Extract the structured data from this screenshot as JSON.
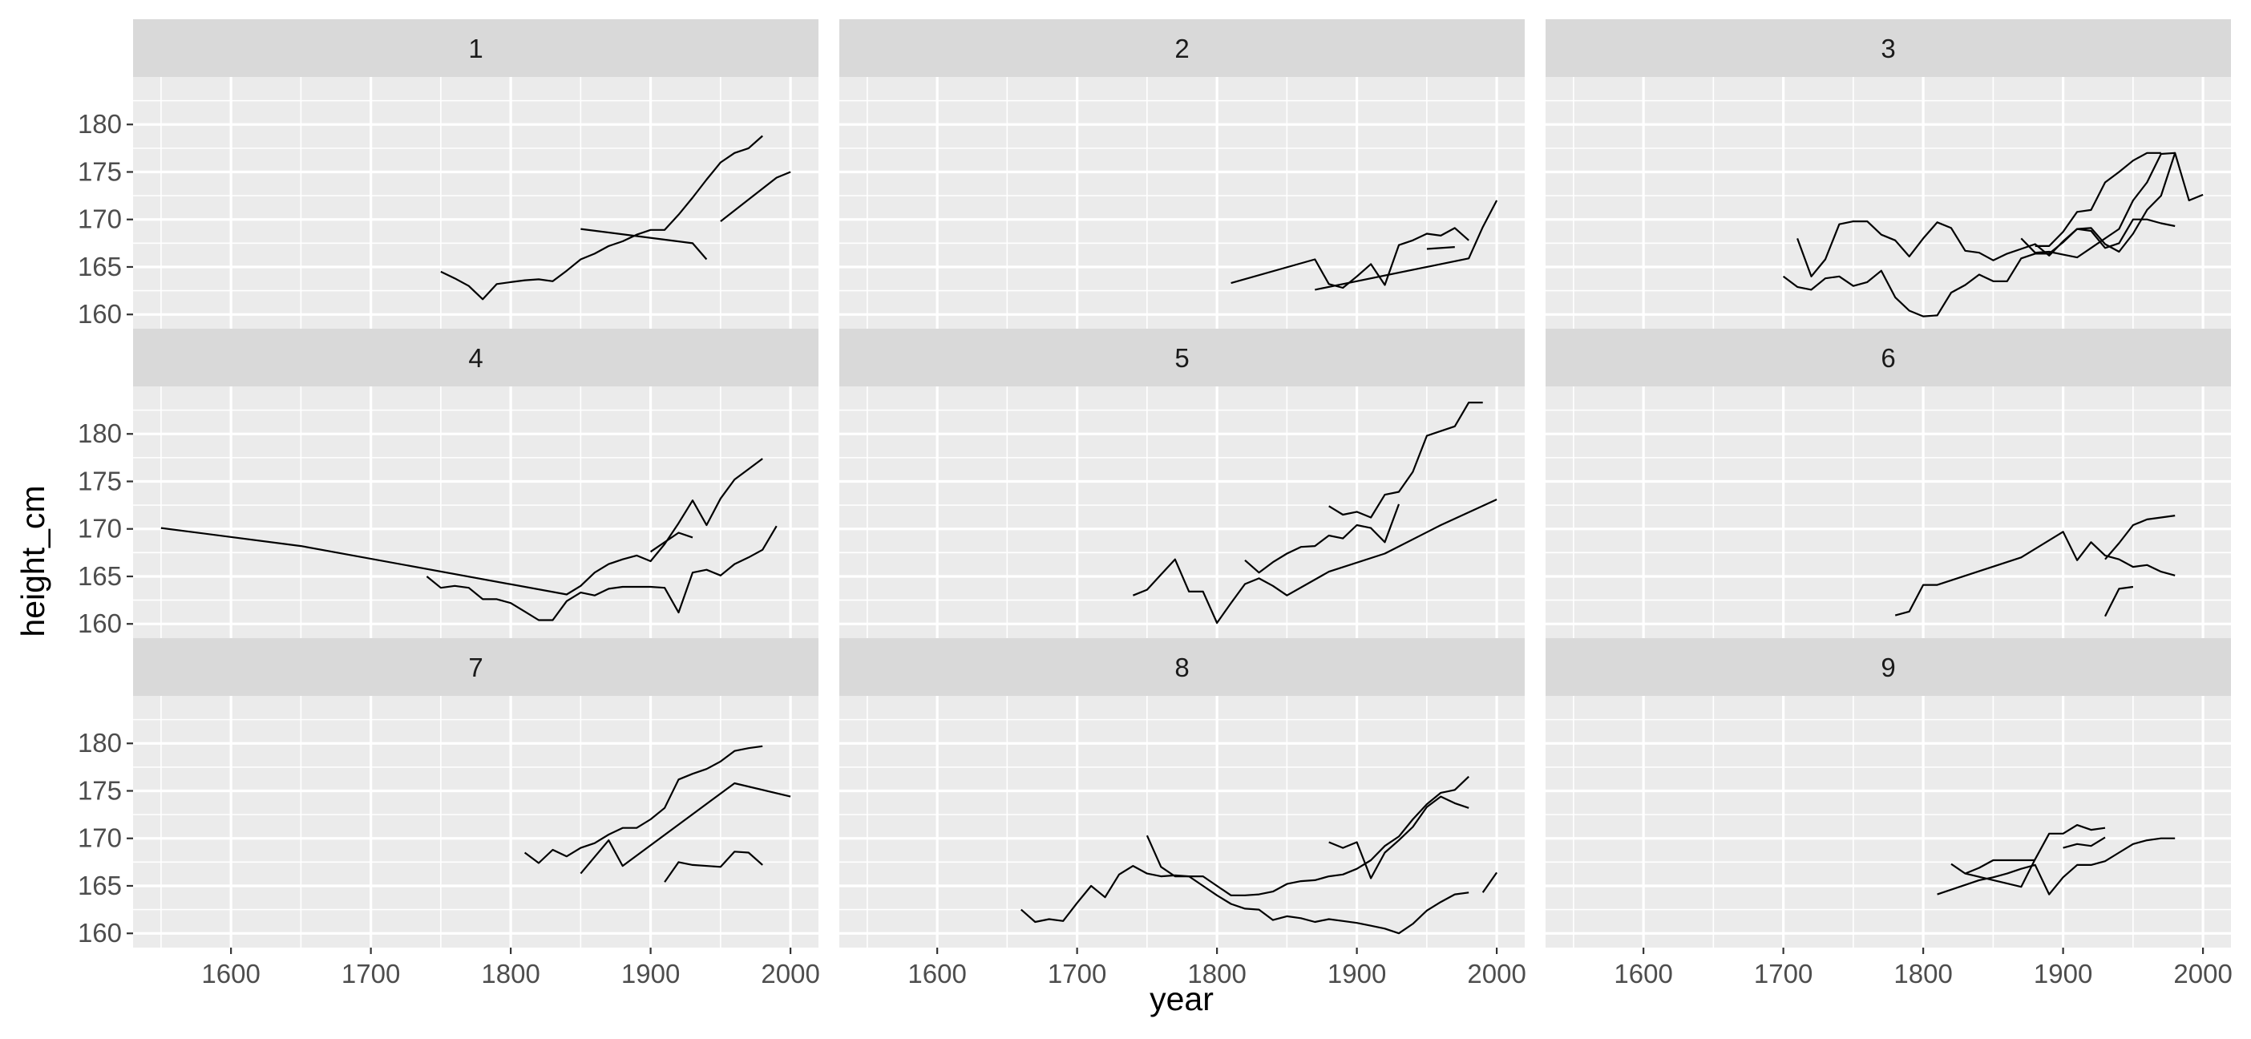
{
  "chart_data": {
    "type": "line",
    "facet": "panel",
    "xlabel": "year",
    "ylabel": "height_cm",
    "xlim": [
      1530,
      2020
    ],
    "ylim": [
      158.5,
      185
    ],
    "x_ticks": [
      1600,
      1700,
      1800,
      1900,
      2000
    ],
    "y_ticks": [
      160,
      165,
      170,
      175,
      180
    ],
    "grid": true,
    "legend": "none",
    "line_color": "#000000",
    "panels": [
      {
        "label": "1",
        "series": [
          {
            "x": [
              1750,
              1760,
              1770,
              1780,
              1790,
              1800,
              1810,
              1820,
              1830,
              1840,
              1850,
              1860,
              1870,
              1880,
              1890,
              1900,
              1910,
              1920,
              1930,
              1940,
              1950,
              1960,
              1970,
              1980
            ],
            "y": [
              164.5,
              163.8,
              163.0,
              161.6,
              163.2,
              163.4,
              163.6,
              163.7,
              163.5,
              164.6,
              165.8,
              166.4,
              167.2,
              167.7,
              168.4,
              168.9,
              168.9,
              170.5,
              172.3,
              174.2,
              176.0,
              177.0,
              177.5,
              178.8
            ]
          },
          {
            "x": [
              1850,
              1930,
              1940
            ],
            "y": [
              169.0,
              167.5,
              165.8
            ]
          },
          {
            "x": [
              1950,
              1990,
              2000
            ],
            "y": [
              169.8,
              174.4,
              175.0
            ]
          }
        ]
      },
      {
        "label": "2",
        "series": [
          {
            "x": [
              1810,
              1870,
              1880,
              1890,
              1900,
              1910,
              1920,
              1930,
              1940,
              1950,
              1960,
              1970,
              1980
            ],
            "y": [
              163.3,
              165.8,
              163.2,
              162.8,
              164.0,
              165.3,
              163.1,
              167.3,
              167.8,
              168.5,
              168.3,
              169.1,
              167.8
            ]
          },
          {
            "x": [
              1870,
              1980,
              1990,
              2000
            ],
            "y": [
              162.6,
              165.9,
              169.2,
              172.0
            ]
          },
          {
            "x": [
              1950,
              1970
            ],
            "y": [
              166.9,
              167.1
            ]
          }
        ]
      },
      {
        "label": "3",
        "series": [
          {
            "x": [
              1710,
              1720,
              1730,
              1740,
              1750,
              1760,
              1770,
              1780,
              1790,
              1800,
              1810,
              1820,
              1830,
              1840,
              1850,
              1860,
              1870,
              1880,
              1890,
              1900,
              1910,
              1920,
              1930,
              1940,
              1950,
              1960,
              1970,
              1980
            ],
            "y": [
              168.0,
              164.0,
              165.8,
              169.5,
              169.8,
              169.8,
              168.4,
              167.8,
              166.1,
              168.0,
              169.7,
              169.1,
              166.7,
              166.5,
              165.7,
              166.4,
              166.9,
              167.4,
              166.2,
              167.7,
              169.0,
              168.8,
              167.0,
              167.5,
              170.0,
              170.0,
              169.6,
              169.3
            ]
          },
          {
            "x": [
              1700,
              1710,
              1720,
              1730,
              1740,
              1750,
              1760,
              1770,
              1780,
              1790,
              1800,
              1810,
              1820,
              1830,
              1840,
              1850,
              1860,
              1870,
              1880,
              1890,
              1900,
              1910,
              1920,
              1930,
              1940,
              1950,
              1960,
              1970,
              1980,
              1990,
              2000
            ],
            "y": [
              164.0,
              162.9,
              162.6,
              163.8,
              164.0,
              163.0,
              163.4,
              164.6,
              161.8,
              160.4,
              159.8,
              159.9,
              162.3,
              163.1,
              164.2,
              163.5,
              163.5,
              165.9,
              166.4,
              166.4,
              167.6,
              169.0,
              169.1,
              167.4,
              166.6,
              168.5,
              171.0,
              172.5,
              177.0,
              172.0,
              172.6
            ]
          },
          {
            "x": [
              1870,
              1880,
              1890,
              1900,
              1910,
              1920,
              1930,
              1940,
              1950,
              1960,
              1970,
              1980
            ],
            "y": [
              168.0,
              166.5,
              166.6,
              166.3,
              166.0,
              167.0,
              168.0,
              169.0,
              172.0,
              173.9,
              176.9,
              177.0
            ]
          },
          {
            "x": [
              1880,
              1890,
              1900,
              1910,
              1920,
              1930,
              1940,
              1950,
              1960,
              1970
            ],
            "y": [
              167.2,
              167.2,
              168.7,
              170.8,
              171.0,
              173.9,
              175.0,
              176.2,
              177.0,
              177.0
            ]
          }
        ]
      },
      {
        "label": "4",
        "series": [
          {
            "x": [
              1550,
              1650,
              1840,
              1850,
              1860,
              1870,
              1880,
              1890,
              1900,
              1910,
              1920,
              1930,
              1940,
              1950,
              1960,
              1970,
              1980
            ],
            "y": [
              170.1,
              168.2,
              163.1,
              164.0,
              165.4,
              166.3,
              166.8,
              167.2,
              166.6,
              168.4,
              170.6,
              173.0,
              170.4,
              173.2,
              175.2,
              176.3,
              177.4
            ]
          },
          {
            "x": [
              1740,
              1750,
              1760,
              1770,
              1780,
              1790,
              1800,
              1810,
              1820,
              1830,
              1840,
              1850,
              1860,
              1870,
              1880,
              1890,
              1900,
              1910,
              1920,
              1930,
              1940,
              1950,
              1960,
              1970,
              1980,
              1990
            ],
            "y": [
              165.0,
              163.8,
              164.0,
              163.8,
              162.6,
              162.6,
              162.2,
              161.3,
              160.4,
              160.4,
              162.4,
              163.3,
              163.0,
              163.7,
              163.9,
              163.9,
              163.9,
              163.8,
              161.2,
              165.4,
              165.7,
              165.1,
              166.3,
              167.0,
              167.8,
              170.3
            ]
          },
          {
            "x": [
              1900,
              1920,
              1930
            ],
            "y": [
              167.6,
              169.6,
              169.1
            ]
          }
        ]
      },
      {
        "label": "5",
        "series": [
          {
            "x": [
              1740,
              1750,
              1760,
              1770,
              1780,
              1790,
              1800,
              1810,
              1820,
              1830,
              1840,
              1850,
              1880,
              1920,
              1960,
              2000
            ],
            "y": [
              163.0,
              163.6,
              165.2,
              166.8,
              163.4,
              163.4,
              160.1,
              162.2,
              164.2,
              164.8,
              164.0,
              163.0,
              165.5,
              167.4,
              170.4,
              173.1
            ]
          },
          {
            "x": [
              1820,
              1830,
              1840,
              1850,
              1860,
              1870,
              1880,
              1890,
              1900,
              1910,
              1920,
              1930
            ],
            "y": [
              166.7,
              165.4,
              166.5,
              167.4,
              168.1,
              168.2,
              169.3,
              169.0,
              170.4,
              170.1,
              168.6,
              172.6
            ]
          },
          {
            "x": [
              1880,
              1890,
              1900,
              1910,
              1920,
              1930,
              1940,
              1950,
              1960,
              1970,
              1980,
              1990
            ],
            "y": [
              172.4,
              171.5,
              171.8,
              171.2,
              173.6,
              173.9,
              176.0,
              179.8,
              180.3,
              180.8,
              183.3,
              183.3
            ]
          }
        ]
      },
      {
        "label": "6",
        "series": [
          {
            "x": [
              1780,
              1790,
              1800,
              1810,
              1870,
              1900,
              1910,
              1920,
              1930,
              1940,
              1950,
              1960,
              1970,
              1980
            ],
            "y": [
              160.9,
              161.3,
              164.1,
              164.1,
              167.0,
              169.7,
              166.7,
              168.6,
              167.2,
              166.8,
              166.0,
              166.2,
              165.5,
              165.1
            ]
          },
          {
            "x": [
              1930,
              1940,
              1950,
              1960,
              1970,
              1980
            ],
            "y": [
              166.8,
              168.5,
              170.4,
              171.0,
              171.2,
              171.4
            ]
          },
          {
            "x": [
              1930,
              1940,
              1950
            ],
            "y": [
              160.8,
              163.7,
              163.9
            ]
          }
        ]
      },
      {
        "label": "7",
        "series": [
          {
            "x": [
              1810,
              1820,
              1830,
              1840,
              1850,
              1860,
              1870,
              1880,
              1890,
              1900,
              1910,
              1920,
              1930,
              1940,
              1950,
              1960,
              1970,
              1980
            ],
            "y": [
              168.5,
              167.4,
              168.8,
              168.1,
              169.0,
              169.5,
              170.4,
              171.1,
              171.1,
              172.0,
              173.2,
              176.2,
              176.8,
              177.3,
              178.1,
              179.2,
              179.5,
              179.7
            ]
          },
          {
            "x": [
              1850,
              1870,
              1880,
              1960,
              2000
            ],
            "y": [
              166.3,
              169.8,
              167.1,
              175.8,
              174.4
            ]
          },
          {
            "x": [
              1910,
              1920,
              1930,
              1950,
              1960,
              1970,
              1980
            ],
            "y": [
              165.4,
              167.5,
              167.2,
              167.0,
              168.6,
              168.5,
              167.2
            ]
          }
        ]
      },
      {
        "label": "8",
        "series": [
          {
            "x": [
              1660,
              1670,
              1680,
              1690,
              1700,
              1710,
              1720,
              1730,
              1740,
              1750,
              1760,
              1770,
              1780,
              1790,
              1800,
              1810,
              1820,
              1830,
              1840,
              1850,
              1860,
              1870,
              1880,
              1890,
              1900,
              1910,
              1920,
              1930,
              1940,
              1950,
              1960,
              1970,
              1980
            ],
            "y": [
              162.5,
              161.2,
              161.5,
              161.3,
              163.2,
              165.0,
              163.8,
              166.2,
              167.1,
              166.3,
              166.0,
              166.1,
              166.0,
              165.0,
              164.0,
              163.1,
              162.6,
              162.5,
              161.4,
              161.8,
              161.6,
              161.2,
              161.5,
              161.3,
              161.1,
              160.8,
              160.5,
              160.0,
              161.0,
              162.4,
              163.3,
              164.1,
              164.3
            ]
          },
          {
            "x": [
              1750,
              1760,
              1770,
              1780,
              1790,
              1800,
              1810,
              1820,
              1830,
              1840,
              1850,
              1860,
              1870,
              1880,
              1890,
              1900,
              1910,
              1920,
              1930,
              1940,
              1950,
              1960,
              1970,
              1980
            ],
            "y": [
              170.3,
              167.0,
              166.0,
              166.0,
              166.0,
              165.0,
              164.0,
              164.0,
              164.1,
              164.4,
              165.2,
              165.5,
              165.6,
              166.0,
              166.2,
              166.8,
              167.7,
              169.2,
              170.2,
              172.0,
              173.6,
              174.8,
              175.1,
              176.5
            ]
          },
          {
            "x": [
              1880,
              1890,
              1900,
              1910,
              1920,
              1930,
              1940,
              1950,
              1960,
              1970,
              1980
            ],
            "y": [
              169.6,
              169.0,
              169.6,
              165.8,
              168.5,
              169.8,
              171.2,
              173.3,
              174.4,
              173.7,
              173.2
            ]
          },
          {
            "x": [
              1990,
              2000
            ],
            "y": [
              164.3,
              166.4
            ]
          }
        ]
      },
      {
        "label": "9",
        "series": [
          {
            "x": [
              1810,
              1840,
              1850,
              1860,
              1870,
              1880,
              1890,
              1900,
              1910,
              1920,
              1930,
              1940,
              1950,
              1960,
              1970,
              1980
            ],
            "y": [
              164.1,
              165.6,
              165.9,
              166.3,
              166.8,
              167.2,
              164.1,
              165.9,
              167.2,
              167.2,
              167.6,
              168.5,
              169.4,
              169.8,
              170.0,
              170.0
            ]
          },
          {
            "x": [
              1820,
              1830,
              1870,
              1880,
              1890,
              1900,
              1910,
              1920,
              1930
            ],
            "y": [
              167.3,
              166.3,
              164.9,
              167.8,
              170.5,
              170.5,
              171.4,
              170.9,
              171.1
            ]
          },
          {
            "x": [
              1830,
              1840,
              1850,
              1860,
              1870,
              1880
            ],
            "y": [
              166.3,
              166.9,
              167.7,
              167.7,
              167.7,
              167.7
            ]
          },
          {
            "x": [
              1900,
              1910,
              1920,
              1930
            ],
            "y": [
              169.0,
              169.4,
              169.2,
              170.1
            ]
          }
        ]
      }
    ]
  }
}
